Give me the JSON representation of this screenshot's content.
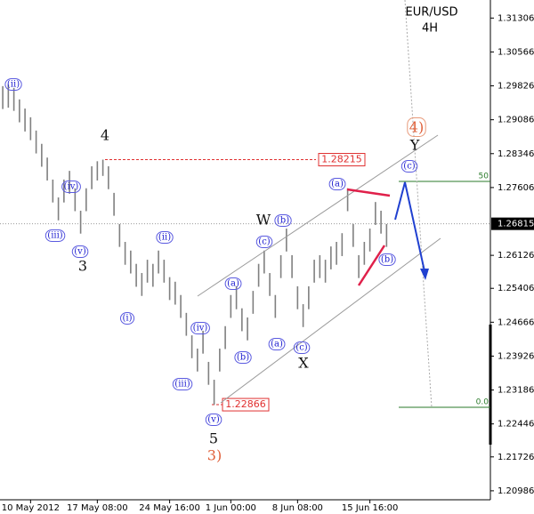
{
  "chart_data": {
    "type": "ohlc",
    "title": "EUR/USD",
    "subtitle": "4H",
    "color": "#808080",
    "categories": [
      null,
      null,
      null,
      null,
      null,
      "10 May 2012",
      null,
      null,
      null,
      null,
      null,
      null,
      null,
      null,
      null,
      null,
      null,
      "17 May 08:00",
      null,
      null,
      null,
      null,
      null,
      null,
      null,
      null,
      null,
      null,
      null,
      null,
      "24 May 16:00",
      null,
      null,
      null,
      null,
      null,
      null,
      null,
      null,
      null,
      null,
      "1 Jun 00:00",
      null,
      null,
      null,
      null,
      null,
      null,
      null,
      null,
      null,
      null,
      null,
      "8 Jun 08:00",
      null,
      null,
      null,
      null,
      null,
      null,
      null,
      null,
      null,
      null,
      null,
      null,
      "15 Jun 16:00",
      null,
      null,
      null
    ],
    "low": [
      1.2932,
      1.2935,
      1.2928,
      1.2903,
      1.2883,
      1.2864,
      1.2835,
      1.2806,
      1.2776,
      1.2728,
      1.2689,
      1.2728,
      1.2747,
      1.2709,
      1.266,
      1.2709,
      1.2757,
      1.2776,
      1.2786,
      1.2757,
      1.2699,
      1.2631,
      1.2592,
      1.2573,
      1.2544,
      1.2524,
      1.2553,
      1.2544,
      1.2573,
      1.2553,
      1.2515,
      1.2505,
      1.2476,
      1.2437,
      1.2388,
      1.2359,
      1.2398,
      1.233,
      1.22866,
      1.2359,
      1.2408,
      1.2476,
      1.2495,
      1.2447,
      1.2427,
      1.2485,
      1.2544,
      1.2573,
      1.2524,
      1.2476,
      1.2563,
      1.2621,
      1.2563,
      1.2495,
      1.2456,
      1.2495,
      1.2553,
      1.2563,
      1.2553,
      1.2582,
      1.2592,
      1.2611,
      1.2709,
      1.2631,
      1.2563,
      1.2592,
      1.2621,
      1.2679,
      1.266,
      1.2631
    ],
    "high": [
      1.2982,
      1.2985,
      1.2978,
      1.2953,
      1.2933,
      1.2914,
      1.2885,
      1.2856,
      1.2826,
      1.2778,
      1.2739,
      1.2778,
      1.2797,
      1.2759,
      1.271,
      1.2759,
      1.2807,
      1.2818,
      1.28215,
      1.2807,
      1.2749,
      1.2681,
      1.2642,
      1.2623,
      1.2594,
      1.2574,
      1.2603,
      1.2594,
      1.2623,
      1.2603,
      1.2565,
      1.2555,
      1.2526,
      1.2487,
      1.2438,
      1.2409,
      1.2448,
      1.238,
      1.2341,
      1.2409,
      1.2458,
      1.2526,
      1.2545,
      1.2497,
      1.2477,
      1.2535,
      1.2594,
      1.2623,
      1.2574,
      1.2526,
      1.2613,
      1.2671,
      1.2613,
      1.2545,
      1.2506,
      1.2545,
      1.2603,
      1.2613,
      1.2603,
      1.2632,
      1.2642,
      1.2661,
      1.2759,
      1.2681,
      1.2613,
      1.2642,
      1.2671,
      1.2729,
      1.271,
      1.2681
    ],
    "ylim": [
      1.2079,
      1.317
    ],
    "yticks": [
      1.31306,
      1.30566,
      1.29826,
      1.29086,
      1.28346,
      1.27606,
      1.26126,
      1.25406,
      1.24666,
      1.23926,
      1.23186,
      1.22446,
      1.21726,
      1.20986
    ],
    "current_price": 1.26815,
    "levels": [
      1.28215,
      1.22866
    ],
    "fib_levels": [
      {
        "value": 1.2774,
        "label": "50"
      },
      {
        "value": 1.2281,
        "label": "0.0"
      }
    ],
    "wave_labels": [
      "(ii)",
      "(iii)",
      "(iv)",
      "(v)",
      "3",
      "4",
      "(ii)",
      "(i)",
      "(iv)",
      "(iii)",
      "(v)",
      "5",
      "3)",
      "(a)",
      "(b)",
      "(c)",
      "(b)",
      "W",
      "(a)",
      "(c)",
      "X",
      "(a)",
      "(b)",
      "4)",
      "Y",
      "(c)"
    ]
  }
}
